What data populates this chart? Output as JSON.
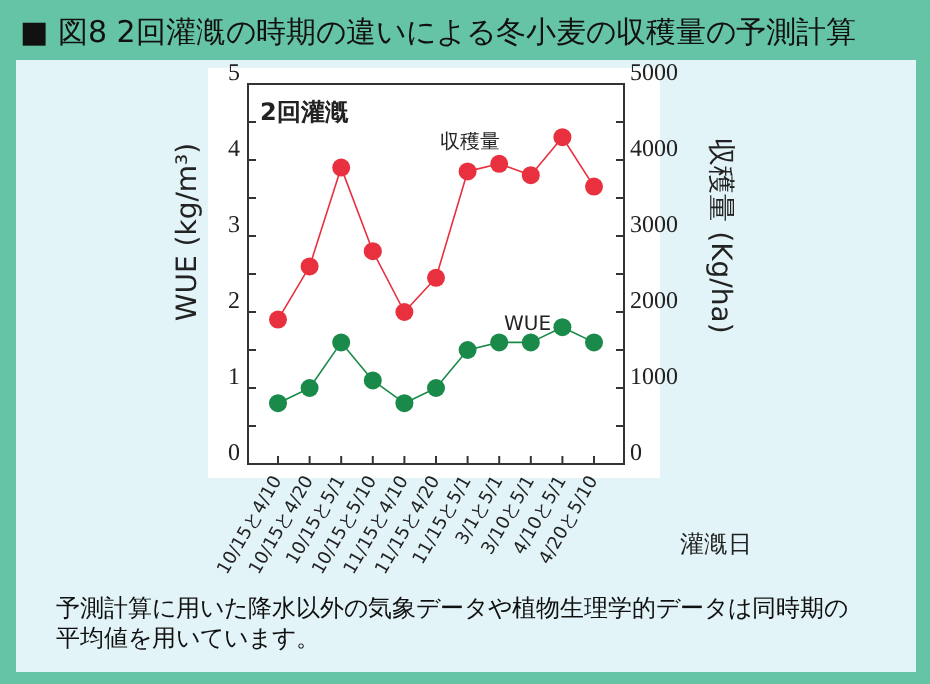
{
  "chart_data": {
    "type": "line",
    "title": "■ 図8  2回灌漑の時期の違いによる冬小麦の収穫量の予測計算",
    "xlabel": "灌漑日",
    "ylabel": "WUE (kg/m³)",
    "y2label": "収穫量 (Kg/ha)",
    "categories": [
      "10/15と4/10",
      "10/15と4/20",
      "10/15と5/1",
      "10/15と5/10",
      "11/15と4/10",
      "11/15と4/20",
      "11/15と5/1",
      "3/1と5/1",
      "3/10と5/1",
      "4/10と5/1",
      "4/20と5/10"
    ],
    "series": [
      {
        "name": "収穫量",
        "color": "#e8303f",
        "axis": "y2",
        "values": [
          1900,
          2600,
          3900,
          2800,
          2000,
          2450,
          3850,
          3950,
          3800,
          4300,
          3650
        ]
      },
      {
        "name": "WUE",
        "color": "#1a8a4a",
        "values": [
          0.8,
          1.0,
          1.6,
          1.1,
          0.8,
          1.0,
          1.5,
          1.6,
          1.6,
          1.8,
          1.6
        ]
      }
    ],
    "ylim": [
      0,
      5
    ],
    "yticks": [
      0,
      {
        "value": 0.5,
        "label": null
      },
      1,
      {
        "value": 1.5,
        "label": null
      },
      2,
      {
        "value": 2.5,
        "label": null
      },
      3,
      {
        "value": 3.5,
        "label": null
      },
      4,
      {
        "value": 4.5,
        "label": null
      },
      5
    ],
    "y2lim": [
      0,
      5000
    ],
    "y2ticks": [
      0,
      {
        "value": 500,
        "label": null
      },
      1000,
      {
        "value": 1500,
        "label": null
      },
      2000,
      {
        "value": 2500,
        "label": null
      },
      3000,
      {
        "value": 3500,
        "label": null
      },
      4000,
      {
        "value": 4500,
        "label": null
      },
      5000
    ],
    "annotations": [
      "2回灌漑",
      "予測計算に用いた降水以外の気象データや植物生理学的データは同時期の平均値を用いています。"
    ],
    "marker": "circle",
    "line_style": "solid"
  }
}
